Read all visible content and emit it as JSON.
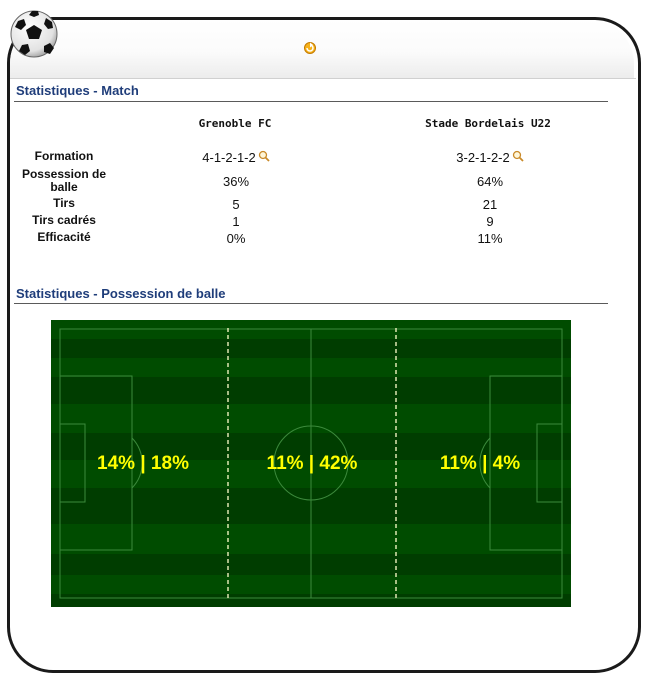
{
  "header": {
    "logo_icon": "soccer-ball-icon",
    "nav_icon": "rotate-arrow-icon"
  },
  "match_stats": {
    "title": "Statistiques - Match",
    "teams": [
      "Grenoble FC",
      "Stade Bordelais U22"
    ],
    "rows": [
      {
        "label": "Formation",
        "home": "4-1-2-1-2",
        "away": "3-2-1-2-2"
      },
      {
        "label": "Possession de balle",
        "home": "36%",
        "away": "64%"
      },
      {
        "label": "Tirs",
        "home": "5",
        "away": "21"
      },
      {
        "label": "Tirs cadrés",
        "home": "1",
        "away": "9"
      },
      {
        "label": "Efficacité",
        "home": "0%",
        "away": "11%"
      }
    ]
  },
  "possession": {
    "title": "Statistiques - Possession de balle",
    "zones": [
      {
        "label": "14% | 18%"
      },
      {
        "label": "11% | 42%"
      },
      {
        "label": "11% | 4%"
      }
    ],
    "colors": {
      "pitch_dark": "#003d00",
      "pitch_light": "#004c00",
      "text": "#ffff00"
    }
  }
}
